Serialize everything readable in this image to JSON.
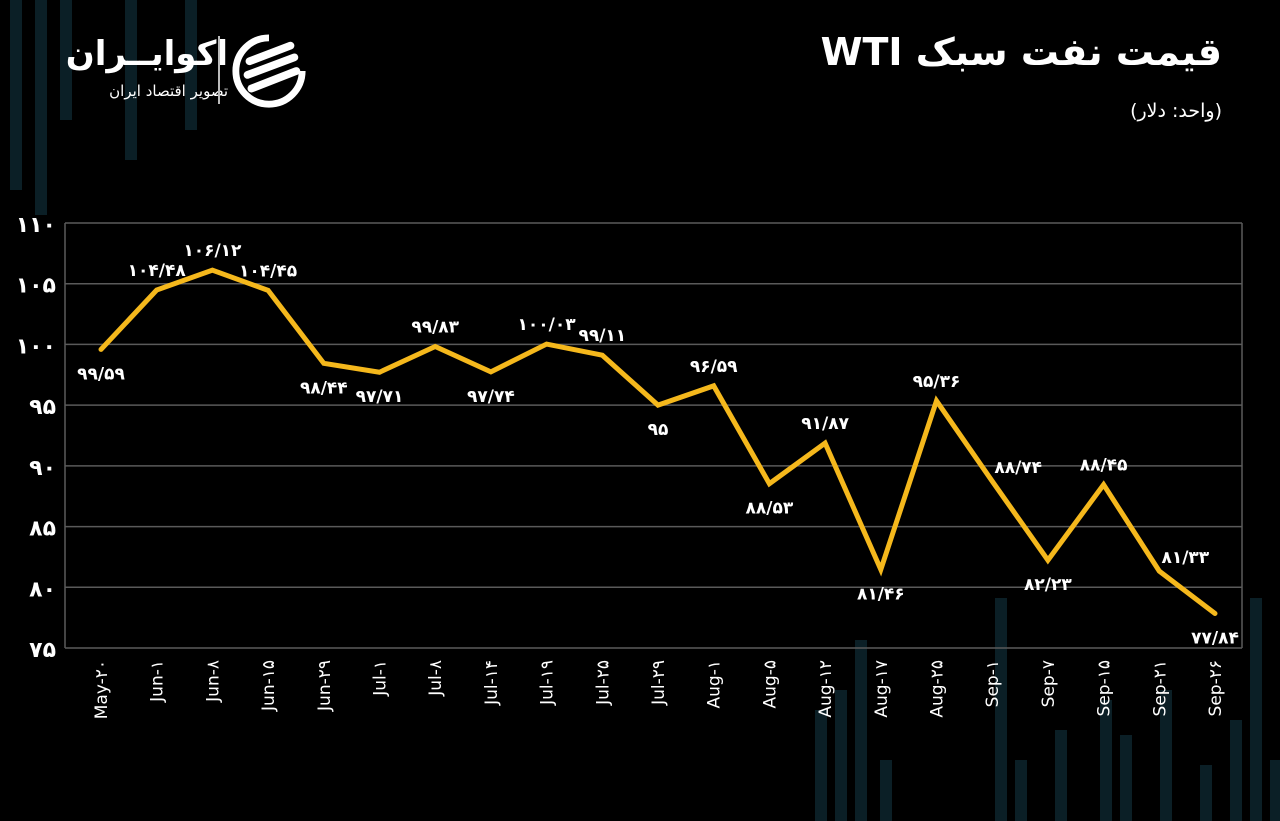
{
  "header": {
    "title": "قیمت نفت سبک WTI",
    "unit": "(واحد: دلار)"
  },
  "logo": {
    "brand": "اکوایــران",
    "tagline": "تصویر اقتصاد ایران",
    "icon": "ecoiran-logo-icon"
  },
  "colors": {
    "background": "#000000",
    "line": "#F5B81C",
    "grid": "#5a5a5a",
    "text": "#ffffff",
    "bg_bars": "#0b1f26"
  },
  "chart_data": {
    "type": "line",
    "title": "قیمت نفت سبک WTI",
    "subtitle": "(واحد: دلار)",
    "xlabel": "",
    "ylabel": "",
    "ylim": [
      75,
      110
    ],
    "yticks": [
      75,
      80,
      85,
      90,
      95,
      100,
      105,
      110
    ],
    "ytick_labels": [
      "۷۵",
      "۸۰",
      "۸۵",
      "۹۰",
      "۹۵",
      "۱۰۰",
      "۱۰۵",
      "۱۱۰"
    ],
    "grid": true,
    "legend": null,
    "categories": [
      "May-20",
      "Jun-1",
      "Jun-8",
      "Jun-15",
      "Jun-29",
      "Jul-1",
      "Jul-8",
      "Jul-14",
      "Jul-19",
      "Jul-25",
      "Jul-29",
      "Aug-1",
      "Aug-5",
      "Aug-12",
      "Aug-17",
      "Aug-25",
      "Sep-1",
      "Sep-7",
      "Sep-15",
      "Sep-21",
      "Sep-26"
    ],
    "category_labels": [
      "May-۲۰",
      "Jun-۱",
      "Jun-۸",
      "Jun-۱۵",
      "Jun-۲۹",
      "Jul-۱",
      "Jul-۸",
      "Jul-۱۴",
      "Jul-۱۹",
      "Jul-۲۵",
      "Jul-۲۹",
      "Aug-۱",
      "Aug-۵",
      "Aug-۱۲",
      "Aug-۱۷",
      "Aug-۲۵",
      "Sep-۱",
      "Sep-۷",
      "Sep-۱۵",
      "Sep-۲۱",
      "Sep-۲۶"
    ],
    "series": [
      {
        "name": "WTI",
        "values": [
          99.59,
          104.48,
          106.12,
          104.45,
          98.44,
          97.71,
          99.83,
          97.74,
          100.03,
          99.11,
          95,
          96.59,
          88.53,
          91.87,
          81.46,
          95.36,
          88.74,
          82.23,
          88.45,
          81.33,
          77.84
        ],
        "labels": [
          "۹۹/۵۹",
          "۱۰۴/۴۸",
          "۱۰۶/۱۲",
          "۱۰۴/۴۵",
          "۹۸/۴۴",
          "۹۷/۷۱",
          "۹۹/۸۳",
          "۹۷/۷۴",
          "۱۰۰/۰۳",
          "۹۹/۱۱",
          "۹۵",
          "۹۶/۵۹",
          "۸۸/۵۳",
          "۹۱/۸۷",
          "۸۱/۴۶",
          "۹۵/۳۶",
          "۸۸/۷۴",
          "۸۲/۲۳",
          "۸۸/۴۵",
          "۸۱/۳۳",
          "۷۷/۸۴"
        ],
        "label_pos": [
          "below",
          "above",
          "above",
          "above",
          "below",
          "below",
          "above",
          "below",
          "above",
          "above",
          "below",
          "above",
          "below",
          "above",
          "below",
          "above",
          "above-right",
          "below",
          "above",
          "above-right",
          "below"
        ]
      }
    ]
  }
}
